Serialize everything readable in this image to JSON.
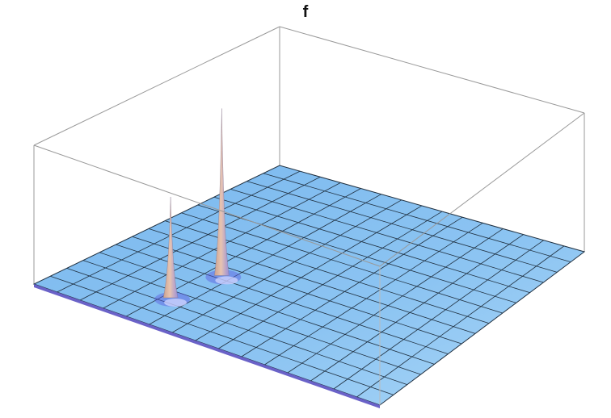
{
  "chart_data": {
    "type": "surface3d",
    "title": "f",
    "xlabel": "",
    "ylabel": "",
    "zlabel": "",
    "axes_labels_shown": false,
    "ticks_shown": false,
    "bounding_box": true,
    "mesh_grid": [
      15,
      15
    ],
    "surface_color": "#8cc4f2",
    "peak_color": "#e8c4b0",
    "valley_color": "#5a5ae0",
    "mesh_color": "#1f2f3f",
    "box_color": "#999999",
    "peaks": [
      {
        "name": "",
        "u": 0.3,
        "v": 0.36,
        "height": 1.0
      },
      {
        "name": "",
        "u": 0.28,
        "v": 0.17,
        "height": 0.6
      }
    ]
  }
}
